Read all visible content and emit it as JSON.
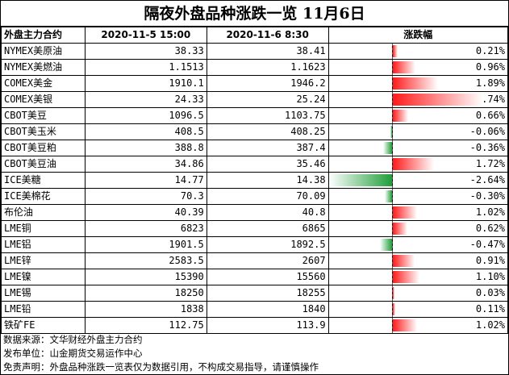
{
  "title": "隔夜外盘品种涨跌一览 11月6日",
  "colors": {
    "up": "#ff1a1a",
    "down": "#1f9e3a"
  },
  "chart_data": {
    "type": "table",
    "columns": [
      "外盘主力合约",
      "2020-11-5 15:00",
      "2020-11-6 8:30",
      "涨跌幅"
    ],
    "rows": [
      {
        "name": "NYMEX美原油",
        "prev": "38.33",
        "curr": "38.41",
        "pct": 0.21,
        "pct_label": "0.21%"
      },
      {
        "name": "NYMEX美燃油",
        "prev": "1.1513",
        "curr": "1.1623",
        "pct": 0.96,
        "pct_label": "0.96%"
      },
      {
        "name": "COMEX美金",
        "prev": "1910.1",
        "curr": "1946.2",
        "pct": 1.89,
        "pct_label": "1.89%"
      },
      {
        "name": "COMEX美银",
        "prev": "24.33",
        "curr": "25.24",
        "pct": 3.74,
        "pct_label": "3.74%"
      },
      {
        "name": "CBOT美豆",
        "prev": "1096.5",
        "curr": "1103.75",
        "pct": 0.66,
        "pct_label": "0.66%"
      },
      {
        "name": "CBOT美玉米",
        "prev": "408.5",
        "curr": "408.25",
        "pct": -0.06,
        "pct_label": "-0.06%"
      },
      {
        "name": "CBOT美豆粕",
        "prev": "388.8",
        "curr": "387.4",
        "pct": -0.36,
        "pct_label": "-0.36%"
      },
      {
        "name": "CBOT美豆油",
        "prev": "34.86",
        "curr": "35.46",
        "pct": 1.72,
        "pct_label": "1.72%"
      },
      {
        "name": "ICE美糖",
        "prev": "14.77",
        "curr": "14.38",
        "pct": -2.64,
        "pct_label": "-2.64%"
      },
      {
        "name": "ICE美棉花",
        "prev": "70.3",
        "curr": "70.09",
        "pct": -0.3,
        "pct_label": "-0.30%"
      },
      {
        "name": "布伦油",
        "prev": "40.39",
        "curr": "40.8",
        "pct": 1.02,
        "pct_label": "1.02%"
      },
      {
        "name": "LME铜",
        "prev": "6823",
        "curr": "6865",
        "pct": 0.62,
        "pct_label": "0.62%"
      },
      {
        "name": "LME铝",
        "prev": "1901.5",
        "curr": "1892.5",
        "pct": -0.47,
        "pct_label": "-0.47%"
      },
      {
        "name": "LME锌",
        "prev": "2583.5",
        "curr": "2607",
        "pct": 0.91,
        "pct_label": "0.91%"
      },
      {
        "name": "LME镍",
        "prev": "15390",
        "curr": "15560",
        "pct": 1.1,
        "pct_label": "1.10%"
      },
      {
        "name": "LME锡",
        "prev": "18250",
        "curr": "18255",
        "pct": 0.03,
        "pct_label": "0.03%"
      },
      {
        "name": "LME铅",
        "prev": "1838",
        "curr": "1840",
        "pct": 0.11,
        "pct_label": "0.11%"
      },
      {
        "name": "铁矿FE",
        "prev": "112.75",
        "curr": "113.9",
        "pct": 1.02,
        "pct_label": "1.02%"
      }
    ]
  },
  "notes": [
    "数据来源：文华财经外盘主力合约",
    "发布单位：山金期货交易运作中心",
    "免责声明：外盘品种涨跌一览表仅为数据引用，不构成交易指导，请谨慎操作"
  ]
}
